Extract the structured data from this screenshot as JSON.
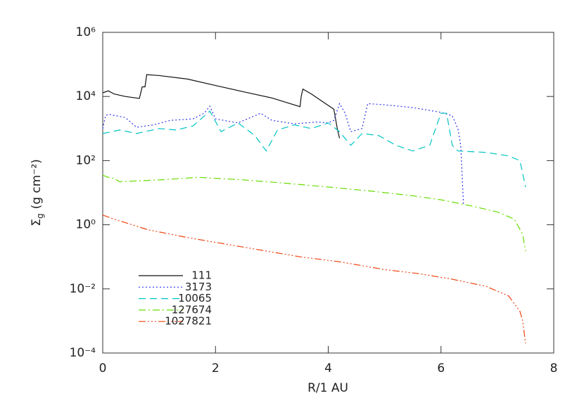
{
  "chart_data": {
    "type": "line",
    "xlabel": "R/1 AU",
    "ylabel_parts": {
      "symbol": "Σ",
      "subscript": "g",
      "unit": "(g cm⁻²)"
    },
    "log_y": true,
    "legend": "lower left",
    "xlim": [
      0,
      8
    ],
    "xticks": [
      0,
      2,
      4,
      6,
      8
    ],
    "ylim": [
      0.0001,
      1000000
    ],
    "yticks": [
      {
        "value": 0.0001,
        "label": "10⁻⁴"
      },
      {
        "value": 0.01,
        "label": "10⁻²"
      },
      {
        "value": 1,
        "label": "10⁰"
      },
      {
        "value": 100,
        "label": "10²"
      },
      {
        "value": 10000,
        "label": "10⁴"
      },
      {
        "value": 1000000,
        "label": "10⁶"
      }
    ],
    "series": [
      {
        "name": "111",
        "color": "#111111",
        "dash": "none",
        "x": [
          0,
          0.1,
          0.2,
          0.4,
          0.65,
          0.7,
          0.75,
          0.78,
          1.0,
          1.5,
          2.0,
          2.5,
          3.0,
          3.5,
          3.52,
          3.55,
          3.7,
          4.1,
          4.13,
          4.16,
          4.2
        ],
        "values": [
          13000,
          15000,
          12000,
          10000,
          8700,
          20000,
          20000,
          48000,
          45000,
          35000,
          22000,
          14000,
          9000,
          4800,
          10000,
          17000,
          12000,
          4000,
          2000,
          1000,
          500
        ]
      },
      {
        "name": "3173",
        "color": "#3333ee",
        "dash": "2,3",
        "x": [
          0,
          0.05,
          0.1,
          0.4,
          0.6,
          0.9,
          1.2,
          1.6,
          1.8,
          1.9,
          2.0,
          2.4,
          2.8,
          3.0,
          3.4,
          3.8,
          4.0,
          4.1,
          4.2,
          4.3,
          4.4,
          4.6,
          4.7,
          5.0,
          5.5,
          6.0,
          6.2,
          6.3,
          6.35,
          6.4
        ],
        "values": [
          1000,
          2500,
          2800,
          2200,
          1100,
          1300,
          1800,
          2000,
          3000,
          5000,
          2000,
          1500,
          3000,
          1800,
          1400,
          1600,
          1500,
          1800,
          6000,
          3000,
          800,
          1000,
          6000,
          5500,
          4500,
          3200,
          2500,
          1000,
          300,
          4
        ]
      },
      {
        "name": "10065",
        "color": "#00c4c4",
        "dash": "10,6",
        "x": [
          0,
          0.3,
          0.6,
          1.0,
          1.3,
          1.6,
          1.9,
          2.1,
          2.4,
          2.7,
          2.9,
          3.1,
          3.4,
          3.7,
          4.0,
          4.2,
          4.4,
          4.6,
          4.9,
          5.2,
          5.5,
          5.8,
          6.0,
          6.1,
          6.2,
          6.3,
          6.8,
          7.2,
          7.4,
          7.5
        ],
        "values": [
          700,
          900,
          700,
          1000,
          900,
          1200,
          3500,
          800,
          1500,
          600,
          200,
          900,
          1300,
          1000,
          1500,
          800,
          300,
          700,
          600,
          300,
          200,
          300,
          3000,
          3000,
          300,
          200,
          180,
          140,
          100,
          15
        ]
      },
      {
        "name": "127674",
        "color": "#66dd00",
        "dash": "10,4,2,4",
        "x": [
          0,
          0.1,
          0.2,
          0.3,
          1.0,
          1.7,
          2.5,
          3.2,
          4.0,
          4.8,
          5.5,
          6.0,
          6.5,
          7.0,
          7.3,
          7.45,
          7.5
        ],
        "values": [
          35,
          30,
          28,
          22,
          25,
          30,
          25,
          20,
          15,
          11,
          8,
          6,
          4,
          2.5,
          1.5,
          0.5,
          0.15
        ]
      },
      {
        "name": "1027821",
        "color": "#ee4411",
        "dash": "10,3,2,3,2,3,2,3",
        "x": [
          0,
          0.2,
          0.8,
          1.5,
          2.5,
          3.5,
          4.2,
          5.0,
          5.6,
          6.2,
          6.8,
          7.2,
          7.4,
          7.45,
          7.5
        ],
        "values": [
          2,
          1.5,
          0.7,
          0.4,
          0.2,
          0.1,
          0.07,
          0.04,
          0.03,
          0.02,
          0.012,
          0.006,
          0.002,
          0.001,
          0.0002
        ]
      }
    ]
  }
}
